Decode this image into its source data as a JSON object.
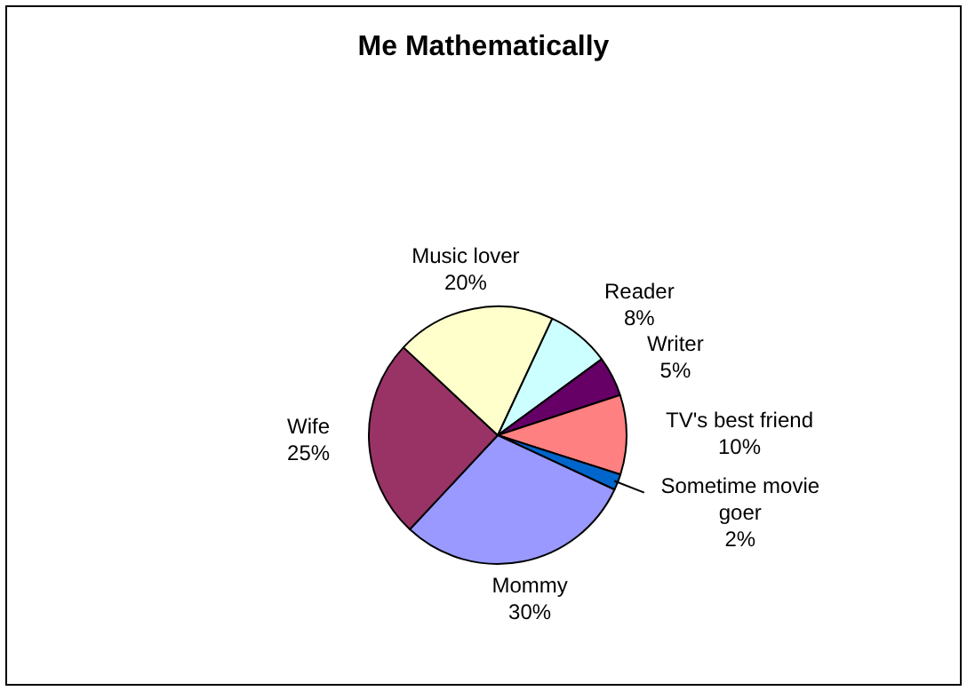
{
  "chart_data": {
    "type": "pie",
    "title": "Me Mathematically",
    "categories": [
      "Reader",
      "Writer",
      "TV's best friend",
      "Sometime movie goer",
      "Mommy",
      "Wife",
      "Music lover"
    ],
    "values": [
      8,
      5,
      10,
      2,
      30,
      25,
      20
    ],
    "value_labels": [
      "8%",
      "5%",
      "10%",
      "2%",
      "30%",
      "25%",
      "20%"
    ],
    "colors": [
      "#ccffff",
      "#660066",
      "#ff8080",
      "#0066cc",
      "#9999ff",
      "#993366",
      "#ffffcc"
    ],
    "legend": false
  }
}
